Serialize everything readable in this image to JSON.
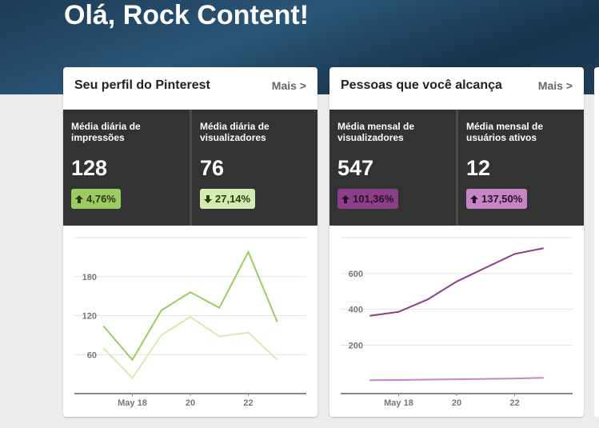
{
  "header": {
    "title": "Olá, Rock Content!"
  },
  "cards": [
    {
      "title": "Seu perfil do Pinterest",
      "more": "Mais >",
      "stats": [
        {
          "label": "Média diária de impressões",
          "value": "128",
          "change": "4,76%",
          "direction": "up",
          "color": "#9ccb62",
          "text_color": "#2b3a14"
        },
        {
          "label": "Média diária de visualizadores",
          "value": "76",
          "change": "27,14%",
          "direction": "down",
          "color": "#d4ebb1",
          "text_color": "#2b3a14"
        }
      ],
      "chart": {
        "type": "line",
        "x": [
          17,
          18,
          19,
          20,
          21,
          22,
          23
        ],
        "xlim": [
          16,
          24
        ],
        "xticks": [
          {
            "value": 18,
            "label": "May 18"
          },
          20,
          22
        ],
        "ylim": [
          0,
          240
        ],
        "yticks": [
          60,
          120,
          180
        ],
        "grid": true,
        "series": [
          {
            "name": "Média diária de impressões",
            "color": "#9ccb62",
            "values": [
              104,
              52,
              128,
              156,
              132,
              218,
              110
            ]
          },
          {
            "name": "Média diária de visualizadores",
            "color": "#d4ebb1",
            "values": [
              70,
              24,
              90,
              118,
              88,
              94,
              52
            ]
          }
        ]
      }
    },
    {
      "title": "Pessoas que você alcança",
      "more": "Mais >",
      "stats": [
        {
          "label": "Média mensal de visualizadores",
          "value": "547",
          "change": "101,36%",
          "direction": "up",
          "color": "#8c3e8b",
          "text_color": "#2a0f2a"
        },
        {
          "label": "Média mensal de usuários ativos",
          "value": "12",
          "change": "137,50%",
          "direction": "up",
          "color": "#c686c5",
          "text_color": "#2a0f2a"
        }
      ],
      "chart": {
        "type": "line",
        "x": [
          17,
          18,
          19,
          20,
          21,
          22,
          23
        ],
        "xlim": [
          16,
          24
        ],
        "xticks": [
          {
            "value": 18,
            "label": "May 18"
          },
          20,
          22
        ],
        "ylim": [
          -70,
          800
        ],
        "yticks": [
          200,
          400,
          600
        ],
        "grid": true,
        "series": [
          {
            "name": "Média mensal de visualizadores",
            "color": "#8c3e8b",
            "values": [
              364,
              386,
              455,
              555,
              632,
              709,
              741
            ]
          },
          {
            "name": "Média mensal de usuários ativos",
            "color": "#c686c5",
            "values": [
              5,
              6,
              8,
              10,
              12,
              14,
              18
            ]
          }
        ]
      }
    }
  ]
}
